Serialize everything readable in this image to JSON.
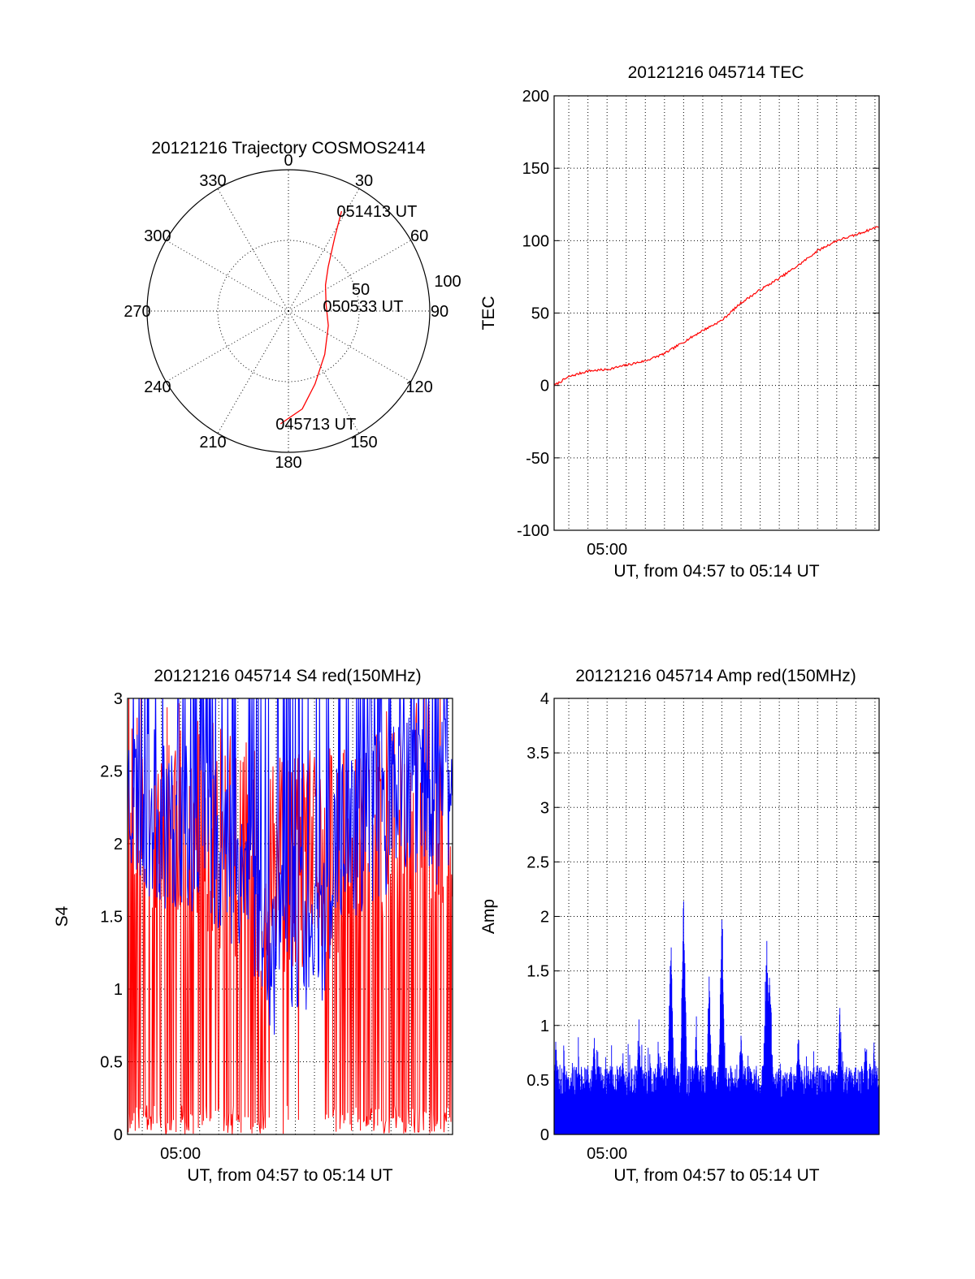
{
  "chart_data": [
    {
      "type": "polar-trajectory",
      "title": "20121216 Trajectory COSMOS2414",
      "azimuth_ticks": [
        {
          "deg": 0,
          "label": "0"
        },
        {
          "deg": 30,
          "label": "30"
        },
        {
          "deg": 60,
          "label": "60"
        },
        {
          "deg": 90,
          "label": "90"
        },
        {
          "deg": 120,
          "label": "120"
        },
        {
          "deg": 150,
          "label": "150"
        },
        {
          "deg": 180,
          "label": "180"
        },
        {
          "deg": 210,
          "label": "210"
        },
        {
          "deg": 240,
          "label": "240"
        },
        {
          "deg": 270,
          "label": "270"
        },
        {
          "deg": 300,
          "label": "300"
        },
        {
          "deg": 330,
          "label": "330"
        }
      ],
      "radial_max": 100,
      "radial_ticks": [
        {
          "value": 50,
          "label": "50"
        },
        {
          "value": 100,
          "label": "100"
        }
      ],
      "track_color": "#ff0000",
      "track": [
        {
          "az": 184,
          "r": 80
        },
        {
          "az": 172,
          "r": 70
        },
        {
          "az": 160,
          "r": 55
        },
        {
          "az": 140,
          "r": 40
        },
        {
          "az": 110,
          "r": 30
        },
        {
          "az": 80,
          "r": 27
        },
        {
          "az": 55,
          "r": 32
        },
        {
          "az": 42,
          "r": 42
        },
        {
          "az": 32,
          "r": 62
        },
        {
          "az": 28,
          "r": 80
        }
      ],
      "annotations": [
        {
          "text": "051413 UT",
          "az": 28,
          "r": 80
        },
        {
          "text": "050533 UT",
          "az": 83,
          "r": 28
        },
        {
          "text": "045713 UT",
          "az": 184,
          "r": 80
        }
      ]
    },
    {
      "type": "line",
      "title": "20121216 045714 TEC",
      "ylabel": "TEC",
      "xlabel": "UT, from 04:57 to 05:14 UT",
      "xlim": [
        "04:57:14",
        "05:14:13"
      ],
      "x_tick_labels": [
        {
          "t": "05:00:00",
          "label": "05:00"
        }
      ],
      "ylim": [
        -100,
        200
      ],
      "y_ticks": [
        {
          "value": -100,
          "label": "-100"
        },
        {
          "value": -50,
          "label": "-50"
        },
        {
          "value": 0,
          "label": "0"
        },
        {
          "value": 50,
          "label": "50"
        },
        {
          "value": 100,
          "label": "100"
        },
        {
          "value": 150,
          "label": "150"
        },
        {
          "value": 200,
          "label": "200"
        }
      ],
      "grid": true,
      "series_color": "#ff0000",
      "series": [
        {
          "values": [
            {
              "t": "04:57:14",
              "y": 0
            },
            {
              "t": "04:58:00",
              "y": 6
            },
            {
              "t": "04:59:00",
              "y": 10
            },
            {
              "t": "05:00:00",
              "y": 11
            },
            {
              "t": "05:01:00",
              "y": 14
            },
            {
              "t": "05:02:00",
              "y": 17
            },
            {
              "t": "05:03:00",
              "y": 22
            },
            {
              "t": "05:04:00",
              "y": 30
            },
            {
              "t": "05:05:00",
              "y": 38
            },
            {
              "t": "05:06:00",
              "y": 45
            },
            {
              "t": "05:07:00",
              "y": 57
            },
            {
              "t": "05:08:00",
              "y": 66
            },
            {
              "t": "05:09:00",
              "y": 74
            },
            {
              "t": "05:10:00",
              "y": 83
            },
            {
              "t": "05:11:00",
              "y": 93
            },
            {
              "t": "05:12:00",
              "y": 100
            },
            {
              "t": "05:13:00",
              "y": 104
            },
            {
              "t": "05:14:13",
              "y": 110
            }
          ]
        }
      ]
    },
    {
      "type": "line",
      "title": "20121216 045714 S4 red(150MHz)",
      "ylabel": "S4",
      "xlabel": "UT, from 04:57 to 05:14 UT",
      "xlim": [
        "04:57:14",
        "05:14:13"
      ],
      "x_tick_labels": [
        {
          "t": "05:00:00",
          "label": "05:00"
        }
      ],
      "ylim": [
        0,
        3
      ],
      "y_ticks": [
        {
          "value": 0,
          "label": "0"
        },
        {
          "value": 0.5,
          "label": "0.5"
        },
        {
          "value": 1,
          "label": "1"
        },
        {
          "value": 1.5,
          "label": "1.5"
        },
        {
          "value": 2,
          "label": "2"
        },
        {
          "value": 2.5,
          "label": "2.5"
        },
        {
          "value": 3,
          "label": "3"
        }
      ],
      "grid": true,
      "series": [
        {
          "color": "#ff0000",
          "values": [
            {
              "t": "04:57:14",
              "y": 2.3
            },
            {
              "t": "04:58:30",
              "y": 2.0
            },
            {
              "t": "05:00:00",
              "y": 1.9
            },
            {
              "t": "05:02:00",
              "y": 1.7
            },
            {
              "t": "05:04:00",
              "y": 1.6
            },
            {
              "t": "05:06:00",
              "y": 1.5
            },
            {
              "t": "05:08:00",
              "y": 1.6
            },
            {
              "t": "05:10:00",
              "y": 1.8
            },
            {
              "t": "05:12:00",
              "y": 1.9
            },
            {
              "t": "05:14:13",
              "y": 2.0
            }
          ]
        },
        {
          "color": "#0000ff",
          "values": [
            {
              "t": "04:57:14",
              "y": 2.4
            },
            {
              "t": "04:58:30",
              "y": 2.2
            },
            {
              "t": "05:00:00",
              "y": 2.1
            },
            {
              "t": "05:02:00",
              "y": 2.0
            },
            {
              "t": "05:03:30",
              "y": 1.8
            },
            {
              "t": "05:05:00",
              "y": 1.2
            },
            {
              "t": "05:06:00",
              "y": 1.5
            },
            {
              "t": "05:07:00",
              "y": 1.2
            },
            {
              "t": "05:08:00",
              "y": 1.9
            },
            {
              "t": "05:10:00",
              "y": 2.2
            },
            {
              "t": "05:12:00",
              "y": 2.3
            },
            {
              "t": "05:14:13",
              "y": 2.3
            }
          ]
        }
      ]
    },
    {
      "type": "line",
      "title": "20121216 045714 Amp red(150MHz)",
      "ylabel": "Amp",
      "xlabel": "UT, from 04:57 to 05:14 UT",
      "xlim": [
        "04:57:14",
        "05:14:13"
      ],
      "x_tick_labels": [
        {
          "t": "05:00:00",
          "label": "05:00"
        }
      ],
      "ylim": [
        0,
        4
      ],
      "y_ticks": [
        {
          "value": 0,
          "label": "0"
        },
        {
          "value": 0.5,
          "label": "0.5"
        },
        {
          "value": 1,
          "label": "1"
        },
        {
          "value": 1.5,
          "label": "1.5"
        },
        {
          "value": 2,
          "label": "2"
        },
        {
          "value": 2.5,
          "label": "2.5"
        },
        {
          "value": 3,
          "label": "3"
        },
        {
          "value": 3.5,
          "label": "3.5"
        },
        {
          "value": 4,
          "label": "4"
        }
      ],
      "grid": true,
      "series_color": "#0000ff",
      "base_level": 0.6,
      "peaks": [
        {
          "t": "04:57:20",
          "y": 0.95
        },
        {
          "t": "04:59:20",
          "y": 0.95
        },
        {
          "t": "05:00:50",
          "y": 0.8
        },
        {
          "t": "05:01:40",
          "y": 1.1
        },
        {
          "t": "05:02:40",
          "y": 0.9
        },
        {
          "t": "05:03:20",
          "y": 1.85
        },
        {
          "t": "05:04:00",
          "y": 2.25
        },
        {
          "t": "05:04:40",
          "y": 1.1
        },
        {
          "t": "05:05:20",
          "y": 1.5
        },
        {
          "t": "05:06:00",
          "y": 2.22
        },
        {
          "t": "05:07:00",
          "y": 1.1
        },
        {
          "t": "05:08:20",
          "y": 2.0
        },
        {
          "t": "05:08:30",
          "y": 1.8
        },
        {
          "t": "05:10:00",
          "y": 1.0
        },
        {
          "t": "05:12:10",
          "y": 1.2
        },
        {
          "t": "05:13:30",
          "y": 0.9
        }
      ]
    }
  ]
}
